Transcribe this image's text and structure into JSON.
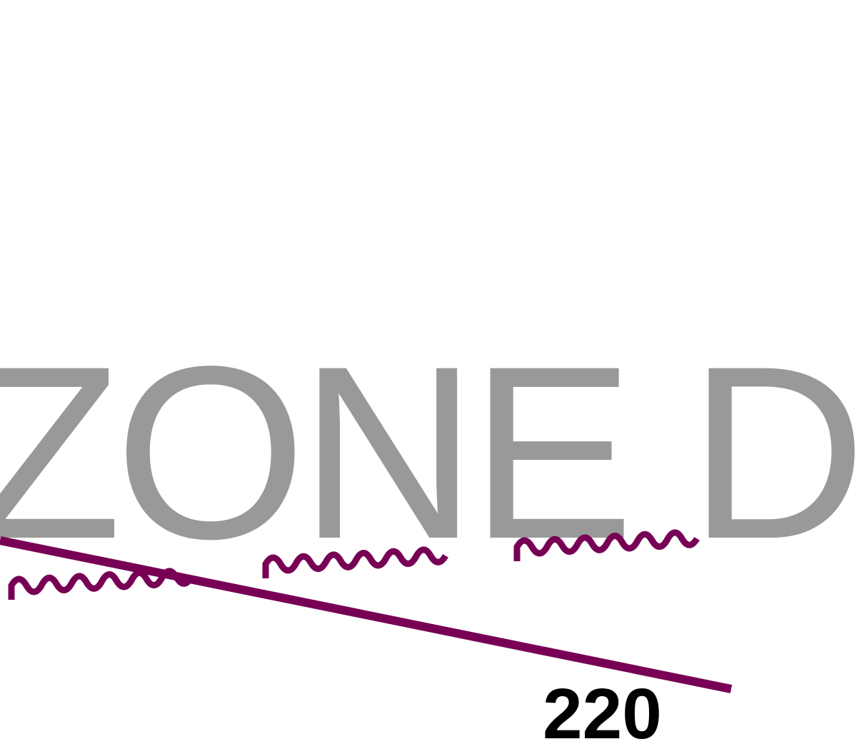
{
  "map": {
    "zone_label": "ZONE D",
    "number_label": "220",
    "colors": {
      "background": "#ffffff",
      "zone_text": "#999999",
      "boundary_line": "#770055",
      "number_text": "#000000"
    },
    "symbols": [
      "boundary-line",
      "wavy-line-symbol"
    ]
  }
}
